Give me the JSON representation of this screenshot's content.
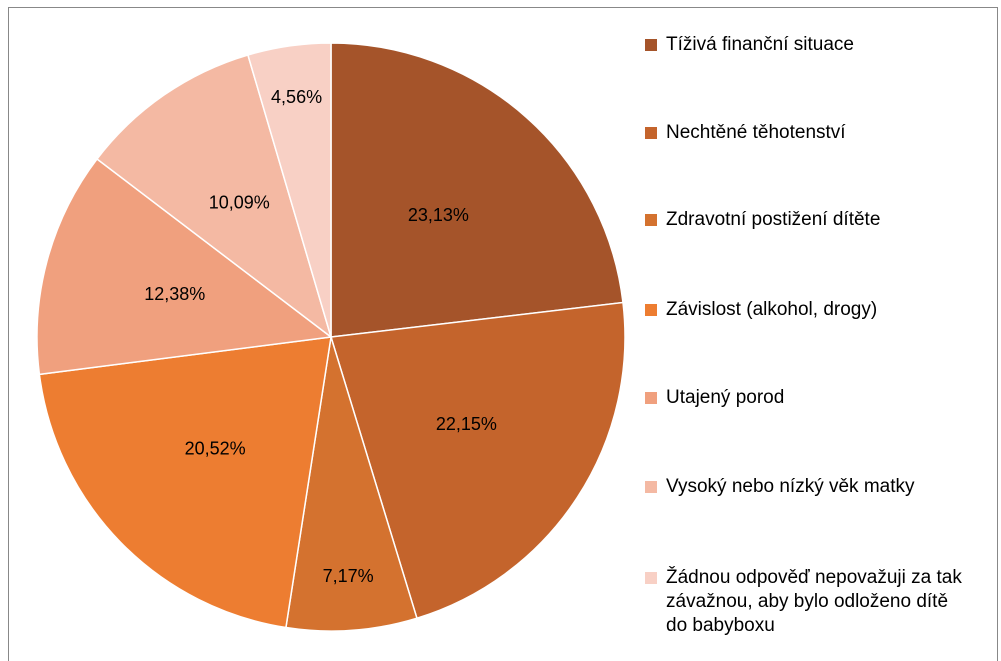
{
  "chart_data": {
    "type": "pie",
    "categories": [
      "Tíživá finanční situace",
      "Nechtěné těhotenství",
      "Zdravotní postižení dítěte",
      "Závislost (alkohol, drogy)",
      "Utajený porod",
      "Vysoký nebo nízký věk matky",
      "Žádnou odpověď nepovažuji za tak závažnou, aby bylo odloženo dítě do babyboxu"
    ],
    "values": [
      23.13,
      22.15,
      7.17,
      20.52,
      12.38,
      10.09,
      4.56
    ],
    "value_labels": [
      "23,13%",
      "22,15%",
      "7,17%",
      "20,52%",
      "12,38%",
      "10,09%",
      "4,56%"
    ],
    "colors": [
      "#a5542a",
      "#c4642c",
      "#d4722f",
      "#ed7d31",
      "#f0a07e",
      "#f4b9a3",
      "#f8d0c5"
    ],
    "legend": "right"
  }
}
